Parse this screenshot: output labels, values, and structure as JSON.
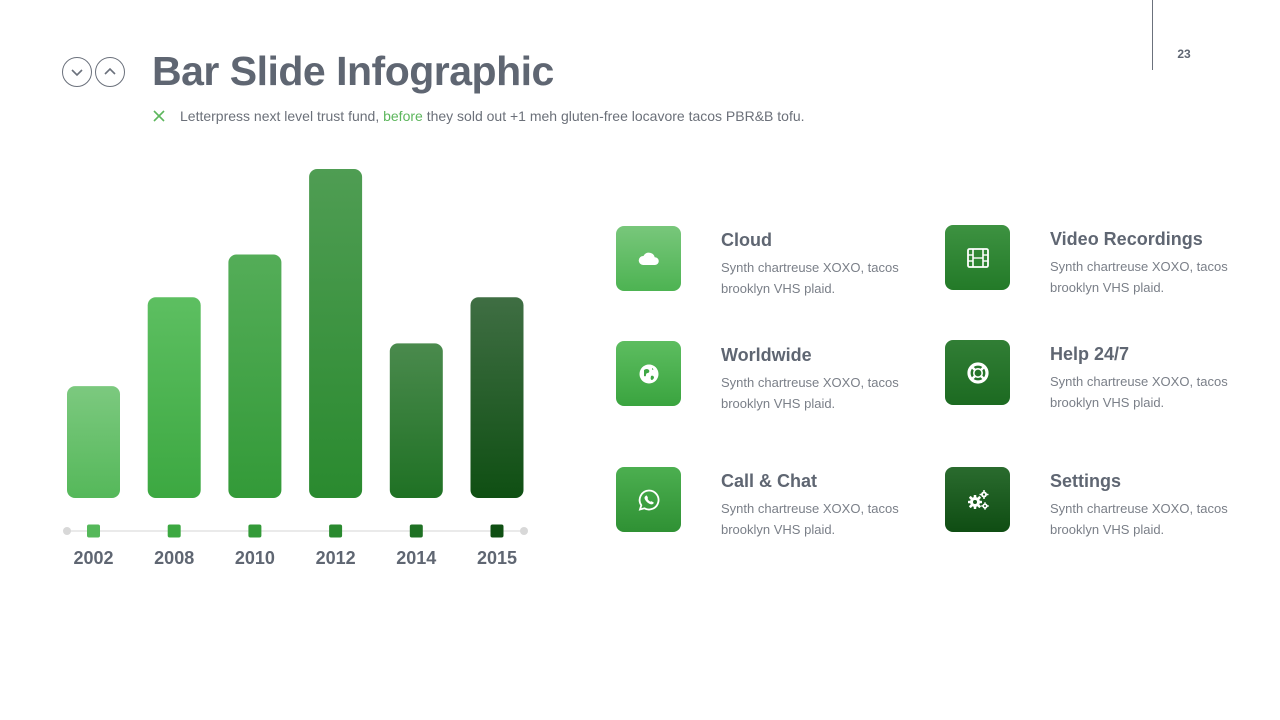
{
  "header": {
    "title": "Bar Slide Infographic",
    "subtitle_pre": "Letterpress next level trust fund, ",
    "subtitle_accent": "before",
    "subtitle_post": " they sold out +1 meh gluten-free locavore tacos PBR&B tofu.",
    "page_number": "23"
  },
  "colors": {
    "accent": "#5cb65c",
    "bar_gradients": [
      [
        "#7cc97f",
        "#55b85a"
      ],
      [
        "#5dbf61",
        "#3ca841"
      ],
      [
        "#54ad58",
        "#339a38"
      ],
      [
        "#4f9d53",
        "#2a8a2f"
      ],
      [
        "#4a8a4d",
        "#1f7124"
      ],
      [
        "#3f6e43",
        "#0f4f13"
      ]
    ]
  },
  "chart_data": {
    "type": "bar",
    "categories": [
      "2002",
      "2008",
      "2010",
      "2012",
      "2014",
      "2015"
    ],
    "values": [
      34,
      61,
      74,
      100,
      47,
      61
    ],
    "ylim": [
      0,
      100
    ],
    "grid": false
  },
  "features": [
    {
      "title": "Cloud",
      "desc": "Synth chartreuse XOXO, tacos brooklyn VHS plaid.",
      "icon": "cloud-icon"
    },
    {
      "title": "Video Recordings",
      "desc": "Synth chartreuse XOXO, tacos brooklyn VHS plaid.",
      "icon": "film-icon"
    },
    {
      "title": "Worldwide",
      "desc": "Synth chartreuse XOXO, tacos brooklyn VHS plaid.",
      "icon": "globe-icon"
    },
    {
      "title": "Help 24/7",
      "desc": "Synth chartreuse XOXO, tacos brooklyn VHS plaid.",
      "icon": "lifebuoy-icon"
    },
    {
      "title": "Call & Chat",
      "desc": "Synth chartreuse XOXO, tacos brooklyn VHS plaid.",
      "icon": "whatsapp-icon"
    },
    {
      "title": "Settings",
      "desc": "Synth chartreuse XOXO, tacos brooklyn VHS plaid.",
      "icon": "gears-icon"
    }
  ]
}
